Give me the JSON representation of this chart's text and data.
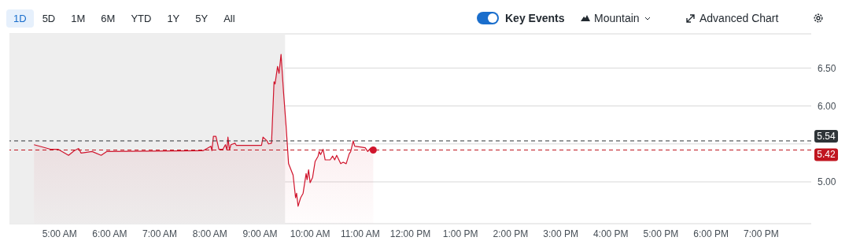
{
  "chart_data": {
    "type": "area",
    "annotations": [
      "1D",
      "5D",
      "1M",
      "6M",
      "YTD",
      "1Y",
      "5Y",
      "All",
      "Key Events",
      "Mountain",
      "Advanced Chart"
    ],
    "series": [
      {
        "color": "#d0142c",
        "x": [
          4.49,
          4.82,
          4.97,
          5.18,
          5.29,
          5.38,
          5.43,
          5.65,
          5.83,
          5.94,
          7.86,
          8.02,
          8.04,
          8.07,
          8.12,
          8.18,
          8.26,
          8.31,
          8.34,
          8.36,
          8.39,
          8.42,
          8.5,
          8.53,
          9.03,
          9.06,
          9.14,
          9.17,
          9.23,
          9.28,
          9.3,
          9.35,
          9.38,
          9.42,
          9.47,
          9.52,
          9.57,
          9.66,
          9.71,
          9.73,
          9.76,
          9.81,
          9.86,
          9.92,
          9.94,
          9.97,
          10.0,
          10.05,
          10.1,
          10.16,
          10.18,
          10.21,
          10.26,
          10.3,
          10.4,
          10.45,
          10.49,
          10.53,
          10.61,
          10.66,
          10.72,
          10.78,
          10.81,
          10.86,
          10.89,
          11.0,
          11.1,
          11.15,
          11.2,
          11.26
        ],
        "values": [
          5.49,
          5.43,
          5.43,
          5.35,
          5.41,
          5.44,
          5.38,
          5.4,
          5.35,
          5.4,
          5.41,
          5.47,
          5.41,
          5.6,
          5.6,
          5.43,
          5.43,
          5.49,
          5.42,
          5.59,
          5.42,
          5.49,
          5.51,
          5.48,
          5.48,
          5.59,
          5.54,
          5.5,
          5.51,
          6.32,
          6.29,
          6.52,
          6.43,
          6.68,
          6.18,
          5.74,
          5.24,
          5.09,
          4.79,
          4.85,
          4.68,
          4.79,
          4.85,
          5.11,
          5.03,
          5.16,
          4.99,
          5.06,
          5.27,
          5.34,
          5.4,
          5.36,
          5.43,
          5.29,
          5.29,
          5.34,
          5.29,
          5.35,
          5.24,
          5.26,
          5.24,
          5.37,
          5.4,
          5.54,
          5.47,
          5.46,
          5.45,
          5.4,
          5.44,
          5.42
        ]
      },
      {
        "type": "scatter",
        "color": "#d0142c",
        "x": [
          11.26
        ],
        "values": [
          5.42
        ]
      }
    ],
    "xlim": [
      4,
      20
    ],
    "xticks": [
      {
        "value": 5,
        "label": "5:00 AM"
      },
      {
        "value": 6,
        "label": "6:00 AM"
      },
      {
        "value": 7,
        "label": "7:00 AM"
      },
      {
        "value": 8,
        "label": "8:00 AM"
      },
      {
        "value": 9,
        "label": "9:00 AM"
      },
      {
        "value": 10,
        "label": "10:00 AM"
      },
      {
        "value": 11,
        "label": "11:00 AM"
      },
      {
        "value": 12,
        "label": "12:00 PM"
      },
      {
        "value": 13,
        "label": "1:00 PM"
      },
      {
        "value": 14,
        "label": "2:00 PM"
      },
      {
        "value": 15,
        "label": "3:00 PM"
      },
      {
        "value": 16,
        "label": "4:00 PM"
      },
      {
        "value": 17,
        "label": "5:00 PM"
      },
      {
        "value": 18,
        "label": "6:00 PM"
      },
      {
        "value": 19,
        "label": "7:00 PM"
      }
    ],
    "ylim": [
      4.45,
      6.95
    ],
    "yticks": [
      {
        "value": 5,
        "label": "5.00"
      },
      {
        "value": 5.5,
        "label": null
      },
      {
        "value": 6,
        "label": "6.00"
      },
      {
        "value": 6.5,
        "label": "6.50"
      }
    ],
    "grid": "y",
    "ref_lines": [
      {
        "axis": "y",
        "value": 5.54,
        "label": "5.54",
        "color": "#2f3438",
        "line_style": "dashed"
      },
      {
        "axis": "y",
        "value": 5.42,
        "label": "5.42",
        "color": "#c0151f",
        "line_style": "dashed"
      }
    ],
    "bands": [
      {
        "axis": "x",
        "from": 4,
        "to": 9.5,
        "color": "#eeeeee"
      }
    ]
  }
}
